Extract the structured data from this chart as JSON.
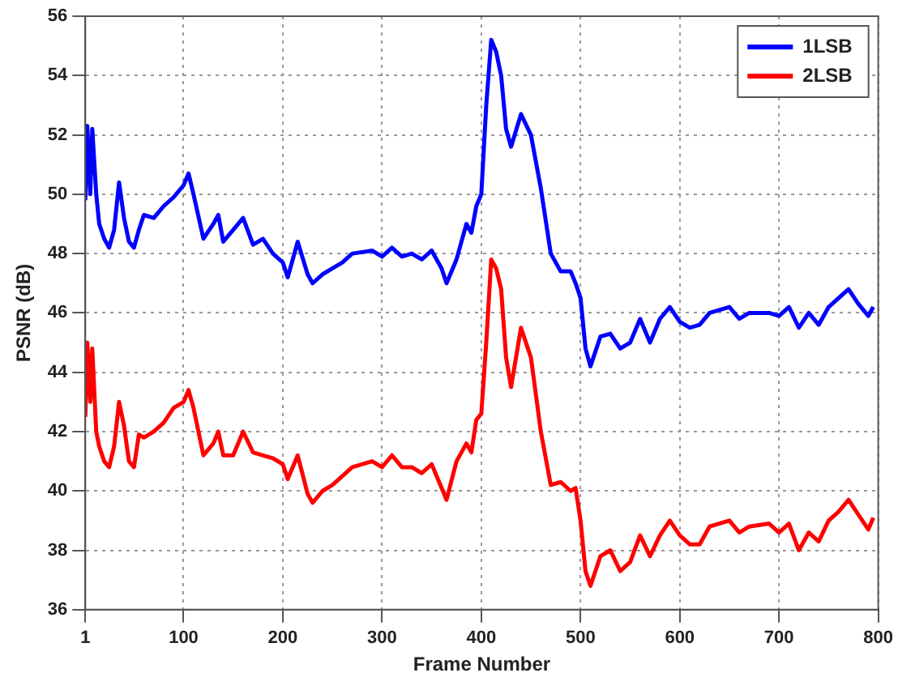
{
  "chart_data": {
    "type": "line",
    "xlabel": "Frame Number",
    "ylabel": "PSNR (dB)",
    "x": [
      1,
      3,
      6,
      8,
      12,
      15,
      20,
      25,
      30,
      35,
      40,
      45,
      50,
      55,
      60,
      70,
      80,
      90,
      100,
      105,
      110,
      120,
      130,
      135,
      140,
      150,
      160,
      170,
      180,
      190,
      200,
      205,
      215,
      225,
      230,
      240,
      250,
      260,
      270,
      290,
      300,
      310,
      320,
      330,
      340,
      350,
      360,
      365,
      375,
      385,
      390,
      395,
      400,
      405,
      410,
      415,
      420,
      425,
      430,
      440,
      450,
      460,
      470,
      480,
      490,
      495,
      500,
      505,
      510,
      520,
      530,
      540,
      550,
      560,
      570,
      580,
      590,
      600,
      610,
      620,
      630,
      650,
      660,
      670,
      690,
      700,
      710,
      720,
      730,
      740,
      750,
      760,
      770,
      780,
      790,
      795
    ],
    "series": [
      {
        "name": "1LSB",
        "color": "#0000ff",
        "values": [
          49.8,
          52.3,
          50,
          52.2,
          50,
          49,
          48.5,
          48.2,
          48.8,
          50.4,
          49.2,
          48.4,
          48.2,
          48.8,
          49.3,
          49.2,
          49.6,
          49.9,
          50.3,
          50.7,
          50,
          48.5,
          49,
          49.3,
          48.4,
          48.8,
          49.2,
          48.3,
          48.5,
          48,
          47.7,
          47.2,
          48.4,
          47.3,
          47,
          47.3,
          47.5,
          47.7,
          48,
          48.1,
          47.9,
          48.2,
          47.9,
          48,
          47.8,
          48.1,
          47.5,
          47,
          47.8,
          49,
          48.7,
          49.6,
          50,
          53,
          55.2,
          54.8,
          54,
          52.2,
          51.6,
          52.7,
          52,
          50.2,
          48,
          47.4,
          47.4,
          47,
          46.5,
          44.8,
          44.2,
          45.2,
          45.3,
          44.8,
          45,
          45.8,
          45,
          45.8,
          46.2,
          45.7,
          45.5,
          45.6,
          46,
          46.2,
          45.8,
          46,
          46,
          45.9,
          46.2,
          45.5,
          46,
          45.6,
          46.2,
          46.5,
          46.8,
          46.3,
          45.9,
          46.2
        ]
      },
      {
        "name": "2LSB",
        "color": "#ff0000",
        "values": [
          42.5,
          45,
          43,
          44.8,
          42,
          41.5,
          41,
          40.8,
          41.5,
          43,
          42.2,
          41,
          40.8,
          41.9,
          41.8,
          42,
          42.3,
          42.8,
          43,
          43.4,
          42.8,
          41.2,
          41.6,
          42,
          41.2,
          41.2,
          42,
          41.3,
          41.2,
          41.1,
          40.9,
          40.4,
          41.2,
          39.9,
          39.6,
          40,
          40.2,
          40.5,
          40.8,
          41,
          40.8,
          41.2,
          40.8,
          40.8,
          40.6,
          40.9,
          40.1,
          39.7,
          41,
          41.6,
          41.3,
          42.4,
          42.6,
          45,
          47.8,
          47.5,
          46.8,
          44.5,
          43.5,
          45.5,
          44.5,
          42,
          40.2,
          40.3,
          40,
          40.1,
          39,
          37.3,
          36.8,
          37.8,
          38,
          37.3,
          37.6,
          38.5,
          37.8,
          38.5,
          39,
          38.5,
          38.2,
          38.2,
          38.8,
          39,
          38.6,
          38.8,
          38.9,
          38.6,
          38.9,
          38,
          38.6,
          38.3,
          39,
          39.3,
          39.7,
          39.2,
          38.7,
          39.1
        ]
      }
    ],
    "xlim": [
      1,
      800
    ],
    "xticks": [
      1,
      100,
      200,
      300,
      400,
      500,
      600,
      700,
      800
    ],
    "ylim": [
      36,
      56
    ],
    "yticks": [
      36,
      38,
      40,
      42,
      44,
      46,
      48,
      50,
      52,
      54,
      56
    ],
    "grid": true,
    "legend": "top right",
    "marker": "none",
    "line_style": "solid"
  }
}
